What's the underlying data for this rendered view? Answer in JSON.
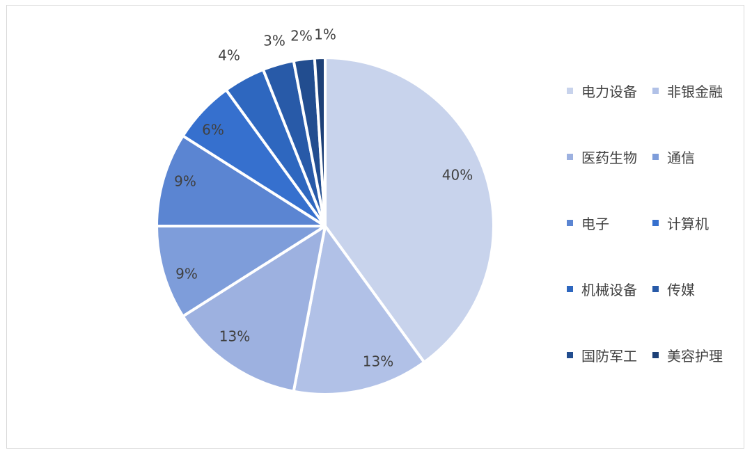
{
  "chart_data": {
    "type": "pie",
    "slices": [
      {
        "label": "电力设备",
        "value": 40,
        "color": "#c8d3ec",
        "text": "40%"
      },
      {
        "label": "非银金融",
        "value": 13,
        "color": "#b1c1e7",
        "text": "13%"
      },
      {
        "label": "医药生物",
        "value": 13,
        "color": "#9db1e0",
        "text": "13%"
      },
      {
        "label": "通信",
        "value": 9,
        "color": "#7e9dda",
        "text": "9%"
      },
      {
        "label": "电子",
        "value": 9,
        "color": "#5b85d2",
        "text": "9%"
      },
      {
        "label": "计算机",
        "value": 6,
        "color": "#3670ce",
        "text": "6%"
      },
      {
        "label": "机械设备",
        "value": 4,
        "color": "#2e67bf",
        "text": "4%"
      },
      {
        "label": "传媒",
        "value": 3,
        "color": "#285aa8",
        "text": "3%"
      },
      {
        "label": "国防军工",
        "value": 2,
        "color": "#224d8f",
        "text": "2%"
      },
      {
        "label": "美容护理",
        "value": 1,
        "color": "#1d4077",
        "text": "1%"
      }
    ],
    "start_angle": "top",
    "direction": "clockwise",
    "legend_position": "right"
  }
}
